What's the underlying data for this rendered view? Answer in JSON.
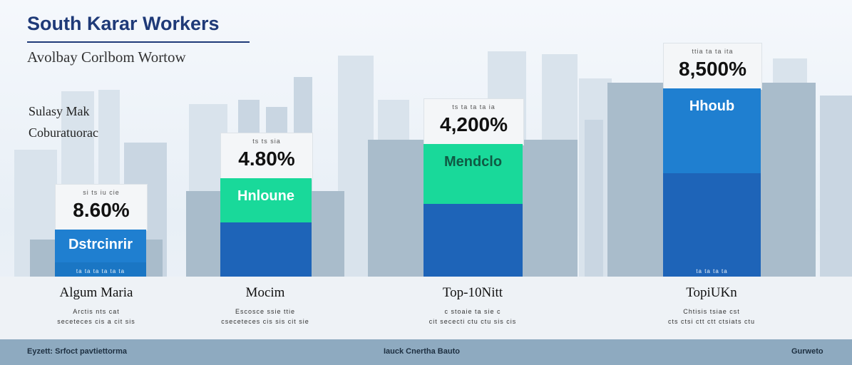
{
  "header": {
    "title": "South Karar Workers",
    "subtitle": "Avolbay Corlbom Wortow"
  },
  "side_note": {
    "line1": "Sulasy Mak",
    "line2": "Coburatuorac"
  },
  "footer": {
    "left": "Eyzett: Srfoct pavtiettorma",
    "center": "Iauck Cnertha Bauto",
    "right": "Gurweto"
  },
  "colors": {
    "accent": "#1f3a78",
    "green": "#19d99a",
    "blue": "#1f7fd0",
    "blue_dark": "#1e64b8",
    "gray_block": "#a9bccb",
    "footer": "#8eaac0"
  },
  "chart_data": {
    "type": "bar",
    "title": "South Karar Workers",
    "subtitle": "Avolbay Corlbom Wortow",
    "ylim": [
      0,
      100
    ],
    "categories": [
      "Algum Maria",
      "Mocim",
      "Top-10Nitt",
      "TopiUKn"
    ],
    "values_label": [
      "8.60%",
      "4.80%",
      "4,200%",
      "8,500%"
    ],
    "bar_labels": [
      "Dstrcinrir",
      "Hnloune",
      "Mendclo",
      "Hhoub"
    ],
    "top_labels": [
      "si ts iu cie",
      "ts ts sia",
      "ts ta ta ta ia",
      "ttia ta ta ita"
    ],
    "sub_labels": [
      [
        "Arctis nts cat",
        "seceteces cis a cit sis"
      ],
      [
        "Escosce ssie ttie",
        "cseceteces cis sis cit sie"
      ],
      [
        "c stoaie ta sie c",
        "cit sececti ctu ctu sis cis"
      ],
      [
        "Chtisis tsiae cst",
        "cts ctsi ctt ctt ctsiats ctu"
      ]
    ],
    "base_labels": [
      "ta ta ta ta ta ta",
      "",
      "",
      "ta ta ta ta"
    ],
    "heights": [
      22,
      46,
      62,
      88
    ],
    "colors": [
      "#1f7fd0",
      "#19d99a",
      "#19d99a",
      "#1f7fd0"
    ]
  }
}
